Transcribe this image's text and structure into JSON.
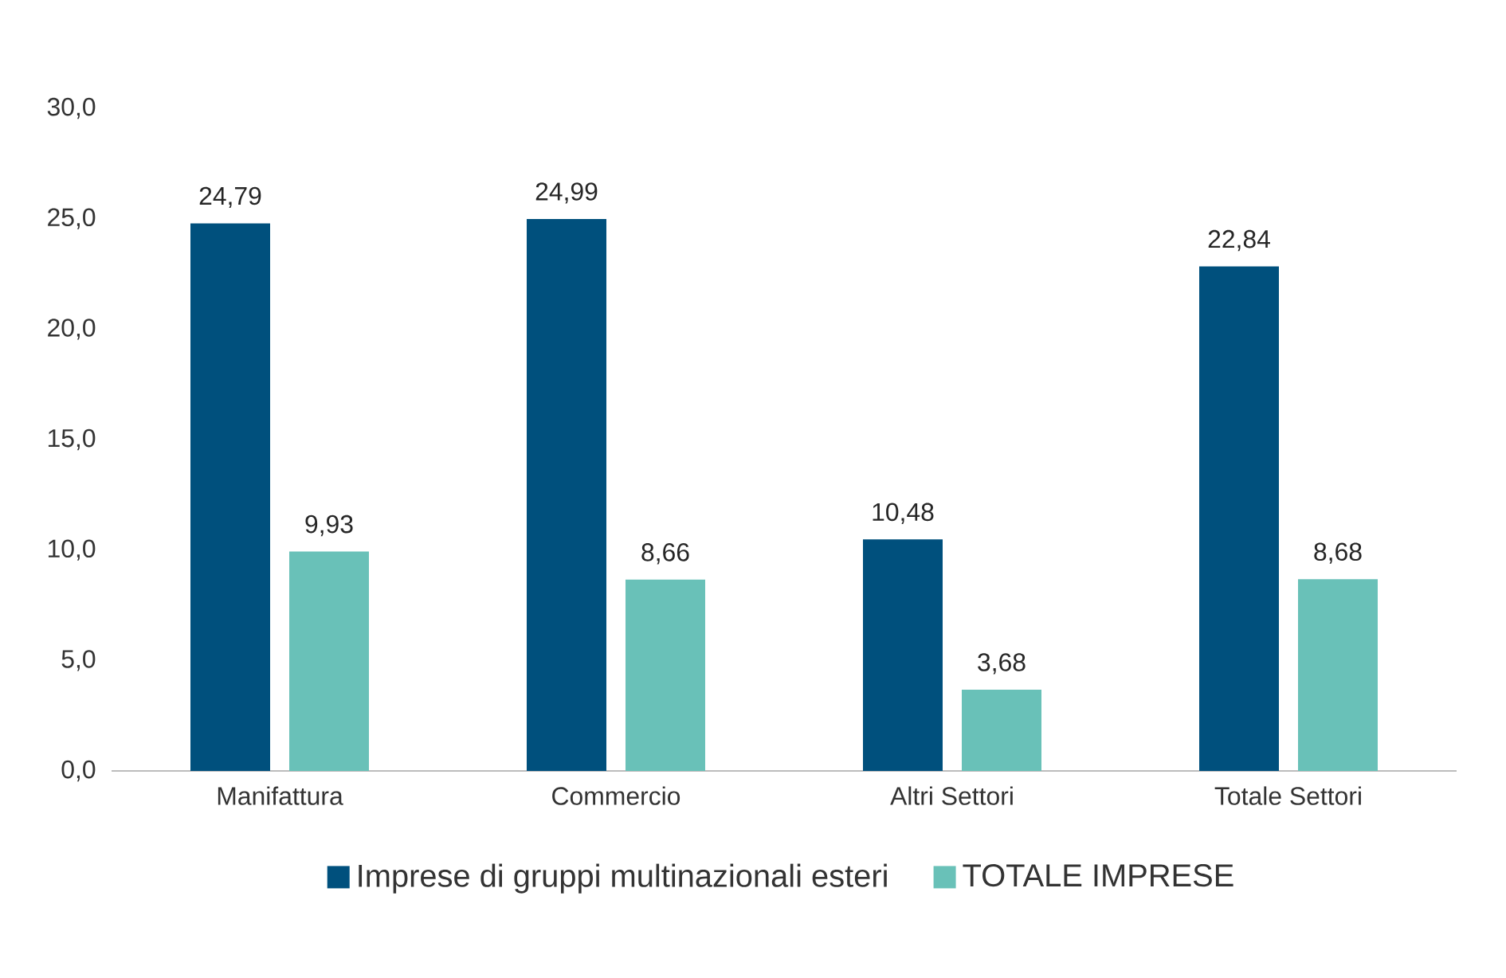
{
  "chart_data": {
    "type": "bar",
    "categories": [
      "Manifattura",
      "Commercio",
      "Altri Settori",
      "Totale Settori"
    ],
    "series": [
      {
        "name": "Imprese di gruppi multinazionali esteri",
        "color": "#00507d",
        "values": [
          24.79,
          24.99,
          10.48,
          22.84
        ],
        "value_labels": [
          "24,79",
          "24,99",
          "10,48",
          "22,84"
        ]
      },
      {
        "name": "TOTALE IMPRESE",
        "color": "#69c1b8",
        "values": [
          9.93,
          8.66,
          3.68,
          8.68
        ],
        "value_labels": [
          "9,93",
          "8,66",
          "3,68",
          "8,68"
        ]
      }
    ],
    "ylim": [
      0,
      30
    ],
    "yticks": [
      {
        "value": 0,
        "label": "0,0"
      },
      {
        "value": 5,
        "label": "5,0"
      },
      {
        "value": 10,
        "label": "10,0"
      },
      {
        "value": 15,
        "label": "15,0"
      },
      {
        "value": 20,
        "label": "20,0"
      },
      {
        "value": 25,
        "label": "25,0"
      },
      {
        "value": 30,
        "label": "30,0"
      }
    ],
    "grid": false,
    "legend": "bottom"
  }
}
